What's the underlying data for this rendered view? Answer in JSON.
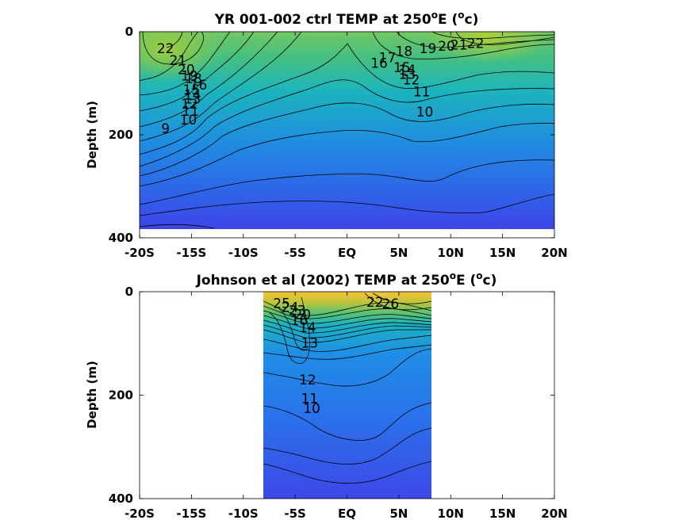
{
  "chart_data": [
    {
      "type": "contour",
      "title": "YR 001-002 ctrl TEMP at 250",
      "title_superscript": "o",
      "title_suffix": "E (",
      "title_unit_superscript": "o",
      "title_unit": "c)",
      "ylabel": "Depth (m)",
      "xlim": [
        -20,
        20
      ],
      "ylim": [
        0,
        400
      ],
      "y_reversed": true,
      "data_extent": {
        "x": [
          -20,
          20
        ],
        "depth": [
          0,
          380
        ]
      },
      "x_ticks": [
        -20,
        -15,
        -10,
        -5,
        0,
        5,
        10,
        15,
        20
      ],
      "x_tick_labels": [
        "-20S",
        "-15S",
        "-10S",
        "-5S",
        "EQ",
        "5N",
        "10N",
        "15N",
        "20N"
      ],
      "y_ticks": [
        0,
        200,
        400
      ],
      "y_tick_labels": [
        "0",
        "200",
        "400"
      ],
      "colormap": [
        "#3d3fe6",
        "#1f7fe6",
        "#18b0c8",
        "#34c08e",
        "#8ccb45",
        "#d6c234",
        "#fad22a"
      ],
      "value_range": [
        8,
        27
      ],
      "contour_levels": [
        9,
        10,
        11,
        12,
        13,
        14,
        15,
        16,
        17,
        18,
        19,
        20,
        21,
        22
      ],
      "contour_labels": [
        {
          "text": "22",
          "x": -17.5,
          "depth": 32
        },
        {
          "text": "21",
          "x": -16.3,
          "depth": 55
        },
        {
          "text": "20",
          "x": -15.5,
          "depth": 73
        },
        {
          "text": "19",
          "x": -15.2,
          "depth": 85
        },
        {
          "text": "18",
          "x": -14.8,
          "depth": 91
        },
        {
          "text": "16",
          "x": -14.3,
          "depth": 103
        },
        {
          "text": "15",
          "x": -15,
          "depth": 112
        },
        {
          "text": "14",
          "x": -14.9,
          "depth": 122
        },
        {
          "text": "13",
          "x": -14.9,
          "depth": 130
        },
        {
          "text": "12",
          "x": -15.2,
          "depth": 140
        },
        {
          "text": "11",
          "x": -15.1,
          "depth": 154
        },
        {
          "text": "10",
          "x": -15.3,
          "depth": 171
        },
        {
          "text": "9",
          "x": -17.5,
          "depth": 188
        },
        {
          "text": "18",
          "x": 5.5,
          "depth": 38
        },
        {
          "text": "19",
          "x": 7.8,
          "depth": 32
        },
        {
          "text": "20",
          "x": 9.6,
          "depth": 28
        },
        {
          "text": "21",
          "x": 10.8,
          "depth": 25
        },
        {
          "text": "22",
          "x": 12.4,
          "depth": 22
        },
        {
          "text": "17",
          "x": 3.9,
          "depth": 50
        },
        {
          "text": "16",
          "x": 3.1,
          "depth": 61
        },
        {
          "text": "15",
          "x": 5.3,
          "depth": 69
        },
        {
          "text": "14",
          "x": 5.8,
          "depth": 74
        },
        {
          "text": "13",
          "x": 5.8,
          "depth": 82
        },
        {
          "text": "12",
          "x": 6.2,
          "depth": 93
        },
        {
          "text": "11",
          "x": 7.2,
          "depth": 116
        },
        {
          "text": "10",
          "x": 7.5,
          "depth": 155
        }
      ]
    },
    {
      "type": "contour",
      "title": "Johnson et al (2002) TEMP at 250",
      "title_superscript": "o",
      "title_suffix": "E (",
      "title_unit_superscript": "o",
      "title_unit": "c)",
      "ylabel": "Depth (m)",
      "xlim": [
        -20,
        20
      ],
      "ylim": [
        0,
        400
      ],
      "y_reversed": true,
      "data_extent": {
        "x": [
          -8,
          8.2
        ],
        "depth": [
          0,
          400
        ]
      },
      "x_ticks": [
        -20,
        -15,
        -10,
        -5,
        0,
        5,
        10,
        15,
        20
      ],
      "x_tick_labels": [
        "-20S",
        "-15S",
        "-10S",
        "-5S",
        "EQ",
        "5N",
        "10N",
        "15N",
        "20N"
      ],
      "y_ticks": [
        0,
        200,
        400
      ],
      "y_tick_labels": [
        "0",
        "200",
        "400"
      ],
      "colormap": [
        "#3d3fe6",
        "#1f7fe6",
        "#18b0c8",
        "#34c08e",
        "#8ccb45",
        "#d6c234",
        "#fad22a"
      ],
      "value_range": [
        8,
        27
      ],
      "contour_levels": [
        10,
        11,
        12,
        13,
        14,
        15,
        16,
        17,
        18,
        19,
        20,
        21,
        22,
        23,
        24,
        25,
        26
      ],
      "contour_labels": [
        {
          "text": "25",
          "x": -6.3,
          "depth": 22
        },
        {
          "text": "24",
          "x": -5.5,
          "depth": 30
        },
        {
          "text": "23",
          "x": -4.8,
          "depth": 36
        },
        {
          "text": "20",
          "x": -4.3,
          "depth": 44
        },
        {
          "text": "16",
          "x": -4.6,
          "depth": 55
        },
        {
          "text": "14",
          "x": -3.8,
          "depth": 69
        },
        {
          "text": "22",
          "x": 2.7,
          "depth": 20
        },
        {
          "text": "26",
          "x": 4.2,
          "depth": 23
        },
        {
          "text": "13",
          "x": -3.6,
          "depth": 99
        },
        {
          "text": "12",
          "x": -3.8,
          "depth": 170
        },
        {
          "text": "11",
          "x": -3.6,
          "depth": 206
        },
        {
          "text": "10",
          "x": -3.4,
          "depth": 225
        }
      ]
    }
  ]
}
